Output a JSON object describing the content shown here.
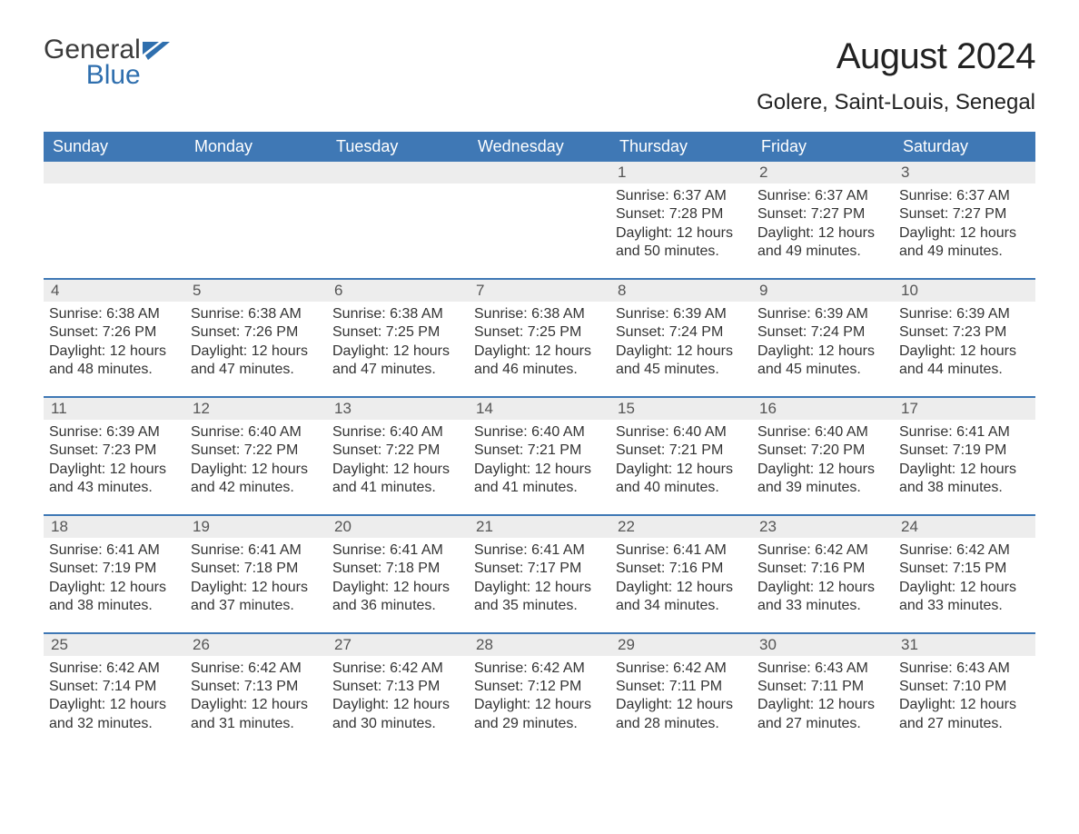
{
  "colors": {
    "header_bg": "#3f78b5",
    "header_text": "#ffffff",
    "daynum_bg": "#ededed",
    "daynum_text": "#555555",
    "body_text": "#333333",
    "rule": "#3f78b5",
    "logo_dark": "#3b3b3b",
    "logo_blue": "#2f6fae",
    "page_bg": "#ffffff"
  },
  "typography": {
    "title_fontsize": 40,
    "location_fontsize": 24,
    "weekday_fontsize": 18,
    "daynum_fontsize": 17,
    "body_fontsize": 16,
    "font_family": "Arial"
  },
  "logo": {
    "line1": "General",
    "line2": "Blue"
  },
  "title": "August 2024",
  "location": "Golere, Saint-Louis, Senegal",
  "weekdays": [
    "Sunday",
    "Monday",
    "Tuesday",
    "Wednesday",
    "Thursday",
    "Friday",
    "Saturday"
  ],
  "weeks": [
    [
      null,
      null,
      null,
      null,
      {
        "n": "1",
        "sunrise": "Sunrise: 6:37 AM",
        "sunset": "Sunset: 7:28 PM",
        "day1": "Daylight: 12 hours",
        "day2": "and 50 minutes."
      },
      {
        "n": "2",
        "sunrise": "Sunrise: 6:37 AM",
        "sunset": "Sunset: 7:27 PM",
        "day1": "Daylight: 12 hours",
        "day2": "and 49 minutes."
      },
      {
        "n": "3",
        "sunrise": "Sunrise: 6:37 AM",
        "sunset": "Sunset: 7:27 PM",
        "day1": "Daylight: 12 hours",
        "day2": "and 49 minutes."
      }
    ],
    [
      {
        "n": "4",
        "sunrise": "Sunrise: 6:38 AM",
        "sunset": "Sunset: 7:26 PM",
        "day1": "Daylight: 12 hours",
        "day2": "and 48 minutes."
      },
      {
        "n": "5",
        "sunrise": "Sunrise: 6:38 AM",
        "sunset": "Sunset: 7:26 PM",
        "day1": "Daylight: 12 hours",
        "day2": "and 47 minutes."
      },
      {
        "n": "6",
        "sunrise": "Sunrise: 6:38 AM",
        "sunset": "Sunset: 7:25 PM",
        "day1": "Daylight: 12 hours",
        "day2": "and 47 minutes."
      },
      {
        "n": "7",
        "sunrise": "Sunrise: 6:38 AM",
        "sunset": "Sunset: 7:25 PM",
        "day1": "Daylight: 12 hours",
        "day2": "and 46 minutes."
      },
      {
        "n": "8",
        "sunrise": "Sunrise: 6:39 AM",
        "sunset": "Sunset: 7:24 PM",
        "day1": "Daylight: 12 hours",
        "day2": "and 45 minutes."
      },
      {
        "n": "9",
        "sunrise": "Sunrise: 6:39 AM",
        "sunset": "Sunset: 7:24 PM",
        "day1": "Daylight: 12 hours",
        "day2": "and 45 minutes."
      },
      {
        "n": "10",
        "sunrise": "Sunrise: 6:39 AM",
        "sunset": "Sunset: 7:23 PM",
        "day1": "Daylight: 12 hours",
        "day2": "and 44 minutes."
      }
    ],
    [
      {
        "n": "11",
        "sunrise": "Sunrise: 6:39 AM",
        "sunset": "Sunset: 7:23 PM",
        "day1": "Daylight: 12 hours",
        "day2": "and 43 minutes."
      },
      {
        "n": "12",
        "sunrise": "Sunrise: 6:40 AM",
        "sunset": "Sunset: 7:22 PM",
        "day1": "Daylight: 12 hours",
        "day2": "and 42 minutes."
      },
      {
        "n": "13",
        "sunrise": "Sunrise: 6:40 AM",
        "sunset": "Sunset: 7:22 PM",
        "day1": "Daylight: 12 hours",
        "day2": "and 41 minutes."
      },
      {
        "n": "14",
        "sunrise": "Sunrise: 6:40 AM",
        "sunset": "Sunset: 7:21 PM",
        "day1": "Daylight: 12 hours",
        "day2": "and 41 minutes."
      },
      {
        "n": "15",
        "sunrise": "Sunrise: 6:40 AM",
        "sunset": "Sunset: 7:21 PM",
        "day1": "Daylight: 12 hours",
        "day2": "and 40 minutes."
      },
      {
        "n": "16",
        "sunrise": "Sunrise: 6:40 AM",
        "sunset": "Sunset: 7:20 PM",
        "day1": "Daylight: 12 hours",
        "day2": "and 39 minutes."
      },
      {
        "n": "17",
        "sunrise": "Sunrise: 6:41 AM",
        "sunset": "Sunset: 7:19 PM",
        "day1": "Daylight: 12 hours",
        "day2": "and 38 minutes."
      }
    ],
    [
      {
        "n": "18",
        "sunrise": "Sunrise: 6:41 AM",
        "sunset": "Sunset: 7:19 PM",
        "day1": "Daylight: 12 hours",
        "day2": "and 38 minutes."
      },
      {
        "n": "19",
        "sunrise": "Sunrise: 6:41 AM",
        "sunset": "Sunset: 7:18 PM",
        "day1": "Daylight: 12 hours",
        "day2": "and 37 minutes."
      },
      {
        "n": "20",
        "sunrise": "Sunrise: 6:41 AM",
        "sunset": "Sunset: 7:18 PM",
        "day1": "Daylight: 12 hours",
        "day2": "and 36 minutes."
      },
      {
        "n": "21",
        "sunrise": "Sunrise: 6:41 AM",
        "sunset": "Sunset: 7:17 PM",
        "day1": "Daylight: 12 hours",
        "day2": "and 35 minutes."
      },
      {
        "n": "22",
        "sunrise": "Sunrise: 6:41 AM",
        "sunset": "Sunset: 7:16 PM",
        "day1": "Daylight: 12 hours",
        "day2": "and 34 minutes."
      },
      {
        "n": "23",
        "sunrise": "Sunrise: 6:42 AM",
        "sunset": "Sunset: 7:16 PM",
        "day1": "Daylight: 12 hours",
        "day2": "and 33 minutes."
      },
      {
        "n": "24",
        "sunrise": "Sunrise: 6:42 AM",
        "sunset": "Sunset: 7:15 PM",
        "day1": "Daylight: 12 hours",
        "day2": "and 33 minutes."
      }
    ],
    [
      {
        "n": "25",
        "sunrise": "Sunrise: 6:42 AM",
        "sunset": "Sunset: 7:14 PM",
        "day1": "Daylight: 12 hours",
        "day2": "and 32 minutes."
      },
      {
        "n": "26",
        "sunrise": "Sunrise: 6:42 AM",
        "sunset": "Sunset: 7:13 PM",
        "day1": "Daylight: 12 hours",
        "day2": "and 31 minutes."
      },
      {
        "n": "27",
        "sunrise": "Sunrise: 6:42 AM",
        "sunset": "Sunset: 7:13 PM",
        "day1": "Daylight: 12 hours",
        "day2": "and 30 minutes."
      },
      {
        "n": "28",
        "sunrise": "Sunrise: 6:42 AM",
        "sunset": "Sunset: 7:12 PM",
        "day1": "Daylight: 12 hours",
        "day2": "and 29 minutes."
      },
      {
        "n": "29",
        "sunrise": "Sunrise: 6:42 AM",
        "sunset": "Sunset: 7:11 PM",
        "day1": "Daylight: 12 hours",
        "day2": "and 28 minutes."
      },
      {
        "n": "30",
        "sunrise": "Sunrise: 6:43 AM",
        "sunset": "Sunset: 7:11 PM",
        "day1": "Daylight: 12 hours",
        "day2": "and 27 minutes."
      },
      {
        "n": "31",
        "sunrise": "Sunrise: 6:43 AM",
        "sunset": "Sunset: 7:10 PM",
        "day1": "Daylight: 12 hours",
        "day2": "and 27 minutes."
      }
    ]
  ]
}
